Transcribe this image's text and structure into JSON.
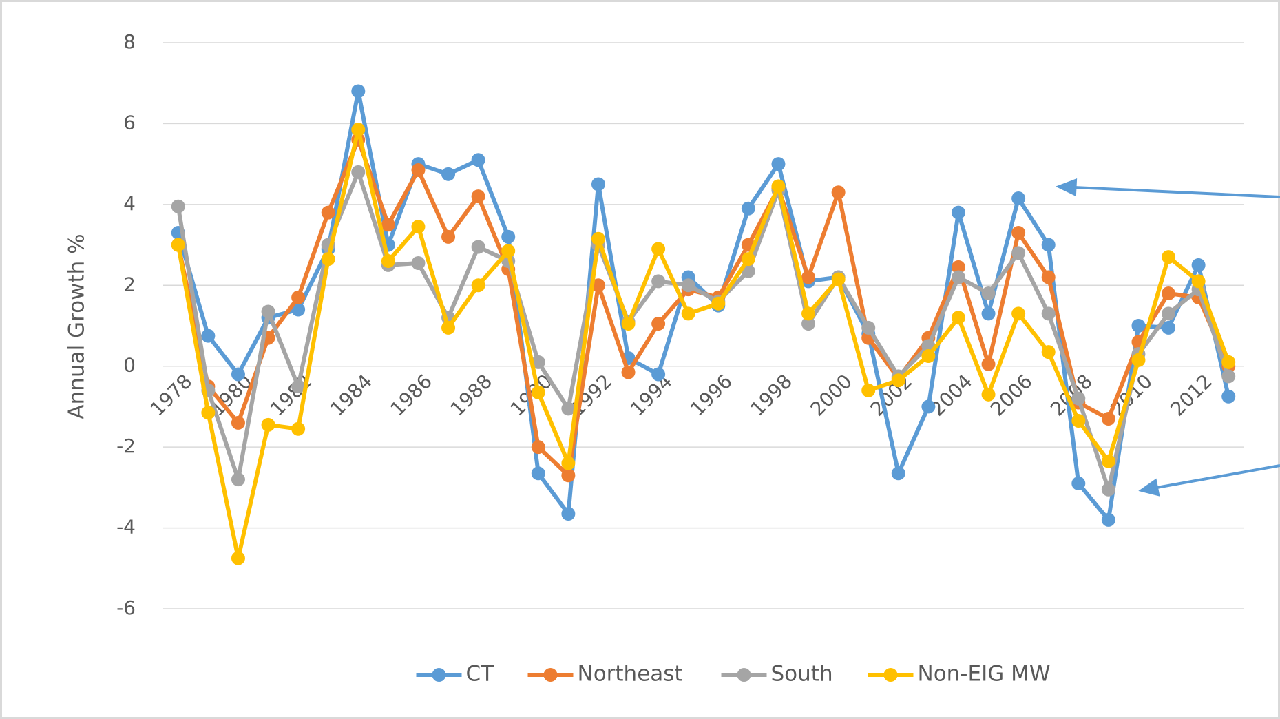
{
  "chart_data": {
    "type": "line",
    "y_label": "Annual Growth %",
    "categories": [
      "1978",
      null,
      "1980",
      null,
      "1982",
      null,
      "1984",
      null,
      "1986",
      null,
      "1988",
      null,
      "1990",
      null,
      "1992",
      null,
      "1994",
      null,
      "1996",
      null,
      "1998",
      null,
      "2000",
      null,
      "2002",
      null,
      "2004",
      null,
      "2006",
      null,
      "2008",
      null,
      "2010",
      null,
      "2012",
      null
    ],
    "series": [
      {
        "name": "CT",
        "color": "#5b9bd5",
        "values": [
          3.3,
          0.75,
          -0.2,
          1.2,
          1.4,
          2.9,
          6.8,
          3.0,
          5.0,
          4.75,
          5.1,
          3.2,
          -2.65,
          -3.65,
          4.5,
          0.2,
          -0.2,
          2.2,
          1.5,
          3.9,
          5.0,
          2.1,
          2.2,
          0.8,
          -2.65,
          -1.0,
          3.8,
          1.3,
          4.15,
          3.0,
          -2.9,
          -3.8,
          1.0,
          0.95,
          2.5,
          -0.75
        ]
      },
      {
        "name": "Northeast",
        "color": "#ed7d31",
        "values": [
          3.0,
          -0.5,
          -1.4,
          0.7,
          1.7,
          3.8,
          5.6,
          3.5,
          4.85,
          3.2,
          4.2,
          2.4,
          -2.0,
          -2.7,
          2.0,
          -0.15,
          1.05,
          1.9,
          1.7,
          3.0,
          4.4,
          2.2,
          4.3,
          0.7,
          -0.3,
          0.7,
          2.45,
          0.05,
          3.3,
          2.2,
          -0.9,
          -1.3,
          0.6,
          1.8,
          1.7,
          0.0
        ]
      },
      {
        "name": "South",
        "color": "#a5a5a5",
        "values": [
          3.95,
          -0.6,
          -2.8,
          1.35,
          -0.5,
          3.0,
          4.8,
          2.5,
          2.55,
          1.2,
          2.95,
          2.6,
          0.1,
          -1.05,
          3.0,
          1.1,
          2.1,
          2.0,
          1.6,
          2.35,
          4.35,
          1.05,
          2.2,
          0.95,
          -0.25,
          0.5,
          2.2,
          1.8,
          2.8,
          1.3,
          -0.8,
          -3.05,
          0.3,
          1.3,
          1.9,
          -0.25
        ]
      },
      {
        "name": "Non-EIG MW",
        "color": "#ffc000",
        "values": [
          3.0,
          -1.15,
          -4.75,
          -1.45,
          -1.55,
          2.65,
          5.85,
          2.6,
          3.45,
          0.95,
          2.0,
          2.85,
          -0.65,
          -2.4,
          3.15,
          1.05,
          2.9,
          1.3,
          1.55,
          2.65,
          4.45,
          1.3,
          2.15,
          -0.6,
          -0.35,
          0.25,
          1.2,
          -0.7,
          1.3,
          0.35,
          -1.35,
          -2.35,
          0.15,
          2.7,
          2.1,
          0.1
        ]
      }
    ],
    "ylim": [
      -6,
      8
    ],
    "yticks": [
      -6,
      -4,
      -2,
      0,
      2,
      4,
      6,
      8
    ],
    "grid": true,
    "legend": "bottom"
  }
}
